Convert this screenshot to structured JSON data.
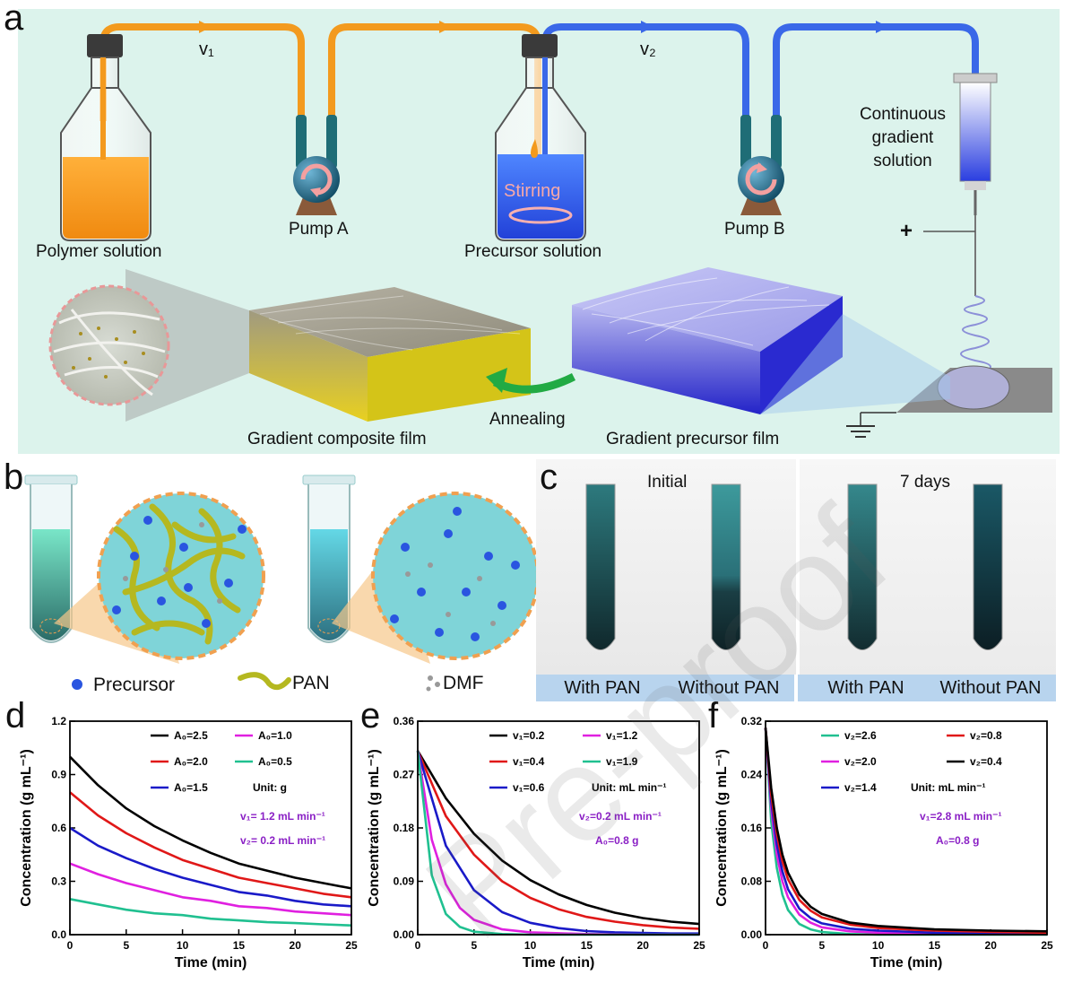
{
  "panel_a": {
    "letter": "a",
    "v1_label": "v₁",
    "v2_label": "v₂",
    "polymer_label": "Polymer solution",
    "pump_a_label": "Pump A",
    "stirring_label": "Stirring",
    "precursor_label": "Precursor solution",
    "pump_b_label": "Pump B",
    "syringe_label_1": "Continuous",
    "syringe_label_2": "gradient",
    "syringe_label_3": "solution",
    "plus_label": "+",
    "annealing_label": "Annealing",
    "composite_film_label": "Gradient composite film",
    "precursor_film_label": "Gradient precursor film"
  },
  "panel_b": {
    "letter": "b",
    "legend_precursor": "Precursor",
    "legend_pan": "PAN",
    "legend_dmf": "DMF"
  },
  "panel_c": {
    "letter": "c",
    "initial_label": "Initial",
    "days_label": "7 days",
    "tube_labels": [
      "With PAN",
      "Without PAN",
      "With PAN",
      "Without PAN"
    ]
  },
  "colors": {
    "orange": "#f39a1e",
    "blue_line": "#3a68e8",
    "mint_bg": "#dcf3ec",
    "purple_text": "#8a1fc5"
  },
  "watermark": "Pre-proof",
  "chart_data": [
    {
      "panel": "d",
      "type": "line",
      "xlabel": "Time (min)",
      "ylabel": "Concentration (g mL⁻¹)",
      "xlim": [
        0,
        25
      ],
      "ylim": [
        0,
        1.2
      ],
      "xticks": [
        "0",
        "5",
        "10",
        "15",
        "20",
        "25"
      ],
      "yticks": [
        "0.0",
        "0.3",
        "0.6",
        "0.9",
        "1.2"
      ],
      "legend_position": "top",
      "notes": [
        "Unit: g",
        "v₁= 1.2 mL min⁻¹",
        "v₂= 0.2 mL min⁻¹"
      ],
      "series": [
        {
          "name": "A₀=2.5",
          "color": "#000000",
          "x": [
            0,
            2.5,
            5,
            7.5,
            10,
            12.5,
            15,
            17.5,
            20,
            22.5,
            25
          ],
          "values": [
            1.0,
            0.84,
            0.71,
            0.61,
            0.53,
            0.46,
            0.4,
            0.36,
            0.32,
            0.29,
            0.26
          ]
        },
        {
          "name": "A₀=2.0",
          "color": "#e01818",
          "x": [
            0,
            2.5,
            5,
            7.5,
            10,
            12.5,
            15,
            17.5,
            20,
            22.5,
            25
          ],
          "values": [
            0.8,
            0.67,
            0.57,
            0.49,
            0.42,
            0.37,
            0.32,
            0.29,
            0.26,
            0.23,
            0.21
          ]
        },
        {
          "name": "A₀=1.5",
          "color": "#1a1ac8",
          "x": [
            0,
            2.5,
            5,
            7.5,
            10,
            12.5,
            15,
            17.5,
            20,
            22.5,
            25
          ],
          "values": [
            0.6,
            0.5,
            0.43,
            0.37,
            0.32,
            0.28,
            0.24,
            0.22,
            0.19,
            0.17,
            0.16
          ]
        },
        {
          "name": "A₀=1.0",
          "color": "#e020e0",
          "x": [
            0,
            2.5,
            5,
            7.5,
            10,
            12.5,
            15,
            17.5,
            20,
            22.5,
            25
          ],
          "values": [
            0.4,
            0.34,
            0.29,
            0.25,
            0.21,
            0.19,
            0.16,
            0.15,
            0.13,
            0.12,
            0.11
          ]
        },
        {
          "name": "A₀=0.5",
          "color": "#20c090",
          "x": [
            0,
            2.5,
            5,
            7.5,
            10,
            12.5,
            15,
            17.5,
            20,
            22.5,
            25
          ],
          "values": [
            0.2,
            0.17,
            0.14,
            0.12,
            0.11,
            0.09,
            0.08,
            0.07,
            0.065,
            0.058,
            0.052
          ]
        }
      ]
    },
    {
      "panel": "e",
      "type": "line",
      "xlabel": "Time (min)",
      "ylabel": "Concentration (g mL⁻¹)",
      "xlim": [
        0,
        25
      ],
      "ylim": [
        0,
        0.36
      ],
      "xticks": [
        "0",
        "5",
        "10",
        "15",
        "20",
        "25"
      ],
      "yticks": [
        "0.00",
        "0.09",
        "0.18",
        "0.27",
        "0.36"
      ],
      "legend_position": "top",
      "notes": [
        "Unit: mL min⁻¹",
        "v₂=0.2 mL min⁻¹",
        "A₀=0.8 g"
      ],
      "series": [
        {
          "name": "v₁=0.2",
          "color": "#000000",
          "x": [
            0,
            2.5,
            5,
            7.5,
            10,
            12.5,
            15,
            17.5,
            20,
            22.5,
            25
          ],
          "values": [
            0.31,
            0.23,
            0.17,
            0.125,
            0.092,
            0.068,
            0.05,
            0.037,
            0.028,
            0.022,
            0.018
          ]
        },
        {
          "name": "v₁=0.4",
          "color": "#e01818",
          "x": [
            0,
            2.5,
            5,
            7.5,
            10,
            12.5,
            15,
            17.5,
            20,
            22.5,
            25
          ],
          "values": [
            0.31,
            0.2,
            0.135,
            0.09,
            0.062,
            0.043,
            0.03,
            0.022,
            0.016,
            0.012,
            0.01
          ]
        },
        {
          "name": "v₁=0.6",
          "color": "#1a1ac8",
          "x": [
            0,
            2.5,
            5,
            7.5,
            10,
            12.5,
            15,
            17.5,
            20,
            22.5,
            25
          ],
          "values": [
            0.31,
            0.15,
            0.075,
            0.038,
            0.02,
            0.011,
            0.006,
            0.004,
            0.003,
            0.002,
            0.002
          ]
        },
        {
          "name": "v₁=1.2",
          "color": "#e020e0",
          "x": [
            0,
            1.25,
            2.5,
            3.75,
            5,
            7.5,
            10,
            15,
            20,
            25
          ],
          "values": [
            0.31,
            0.16,
            0.085,
            0.045,
            0.025,
            0.009,
            0.004,
            0.001,
            0.0,
            0.0
          ]
        },
        {
          "name": "v₁=1.9",
          "color": "#20c090",
          "x": [
            0,
            1.25,
            2.5,
            3.75,
            5,
            7.5,
            10,
            15,
            20,
            25
          ],
          "values": [
            0.31,
            0.1,
            0.035,
            0.013,
            0.005,
            0.001,
            0.0,
            0.0,
            0.0,
            0.0
          ]
        }
      ]
    },
    {
      "panel": "f",
      "type": "line",
      "xlabel": "Time (min)",
      "ylabel": "Concentration (g mL⁻¹)",
      "xlim": [
        0,
        25
      ],
      "ylim": [
        0,
        0.32
      ],
      "xticks": [
        "0",
        "5",
        "10",
        "15",
        "20",
        "25"
      ],
      "yticks": [
        "0.00",
        "0.08",
        "0.16",
        "0.24",
        "0.32"
      ],
      "legend_position": "top",
      "notes": [
        "Unit: mL min⁻¹",
        "v₁=2.8 mL min⁻¹",
        "A₀=0.8 g"
      ],
      "series": [
        {
          "name": "v₂=2.6",
          "color": "#20c090",
          "x": [
            0,
            0.5,
            1,
            1.5,
            2,
            3,
            4,
            5,
            7.5,
            10,
            15,
            20,
            25
          ],
          "values": [
            0.31,
            0.17,
            0.1,
            0.06,
            0.037,
            0.016,
            0.008,
            0.004,
            0.001,
            0.0,
            0.0,
            0.0,
            0.0
          ]
        },
        {
          "name": "v₂=2.0",
          "color": "#e020e0",
          "x": [
            0,
            0.5,
            1,
            1.5,
            2,
            3,
            4,
            5,
            7.5,
            10,
            15,
            20,
            25
          ],
          "values": [
            0.31,
            0.19,
            0.12,
            0.08,
            0.056,
            0.03,
            0.018,
            0.011,
            0.005,
            0.003,
            0.001,
            0.001,
            0.001
          ]
        },
        {
          "name": "v₂=1.4",
          "color": "#1a1ac8",
          "x": [
            0,
            0.5,
            1,
            1.5,
            2,
            3,
            4,
            5,
            7.5,
            10,
            15,
            20,
            25
          ],
          "values": [
            0.31,
            0.2,
            0.135,
            0.095,
            0.068,
            0.039,
            0.025,
            0.017,
            0.009,
            0.006,
            0.003,
            0.002,
            0.002
          ]
        },
        {
          "name": "v₂=0.8",
          "color": "#e01818",
          "x": [
            0,
            0.5,
            1,
            1.5,
            2,
            3,
            4,
            5,
            7.5,
            10,
            15,
            20,
            25
          ],
          "values": [
            0.31,
            0.21,
            0.15,
            0.11,
            0.083,
            0.052,
            0.036,
            0.026,
            0.015,
            0.01,
            0.006,
            0.004,
            0.003
          ]
        },
        {
          "name": "v₂=0.4",
          "color": "#000000",
          "x": [
            0,
            0.5,
            1,
            1.5,
            2,
            3,
            4,
            5,
            7.5,
            10,
            15,
            20,
            25
          ],
          "values": [
            0.31,
            0.22,
            0.16,
            0.12,
            0.093,
            0.06,
            0.042,
            0.031,
            0.018,
            0.013,
            0.008,
            0.006,
            0.005
          ]
        }
      ]
    }
  ]
}
